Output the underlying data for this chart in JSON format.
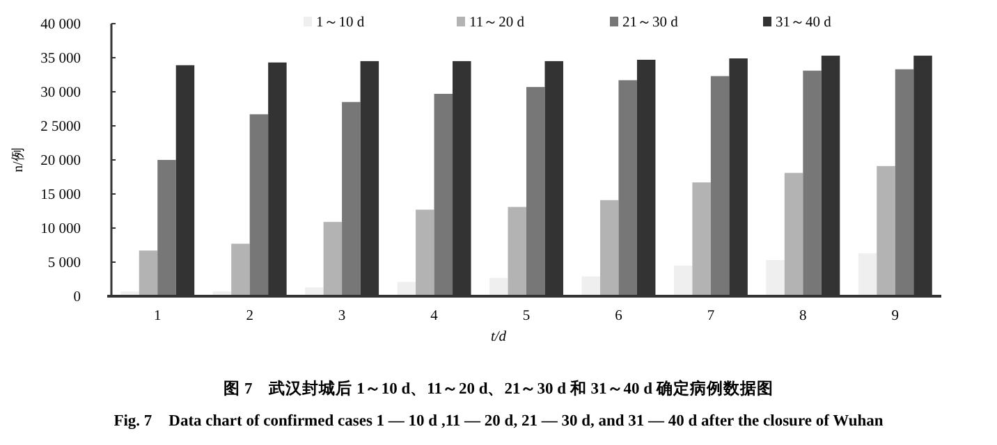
{
  "chart_data": {
    "type": "bar",
    "title": "图 7　武汉封城后 1～10 d、11～20 d、21～30 d 和 31～40 d 确定病例数据图",
    "subtitle": "Fig. 7　Data chart of confirmed cases 1 — 10 d ,11 — 20 d, 21 — 30 d, and 31 — 40 d after the closure of Wuhan",
    "xlabel": "t/d",
    "ylabel": "n/例",
    "categories": [
      "1",
      "2",
      "3",
      "4",
      "5",
      "6",
      "7",
      "8",
      "9"
    ],
    "series": [
      {
        "name": "1～10 d",
        "color": "#efefef",
        "values": [
          700,
          700,
          1300,
          2100,
          2700,
          2900,
          4500,
          5300,
          6300
        ]
      },
      {
        "name": "11～20 d",
        "color": "#b3b3b3",
        "values": [
          6700,
          7700,
          10900,
          12700,
          13100,
          14100,
          16700,
          18100,
          19100
        ]
      },
      {
        "name": "21～30 d",
        "color": "#777777",
        "values": [
          20000,
          26700,
          28500,
          29700,
          30700,
          31700,
          32300,
          33100,
          33300
        ]
      },
      {
        "name": "31～40 d",
        "color": "#333333",
        "values": [
          33900,
          34300,
          34500,
          34500,
          34500,
          34700,
          34900,
          35300,
          35300
        ]
      }
    ],
    "ylim": [
      0,
      40000
    ],
    "yticks": [
      {
        "value": 0,
        "label": "0"
      },
      {
        "value": 5000,
        "label": "5 000"
      },
      {
        "value": 10000,
        "label": "10 000"
      },
      {
        "value": 15000,
        "label": "15 000"
      },
      {
        "value": 20000,
        "label": "20 000"
      },
      {
        "value": 25000,
        "label": "2 5000"
      },
      {
        "value": 30000,
        "label": "30 000"
      },
      {
        "value": 35000,
        "label": "35 000"
      },
      {
        "value": 40000,
        "label": "40 000"
      }
    ],
    "grid": false,
    "legend": "top"
  }
}
